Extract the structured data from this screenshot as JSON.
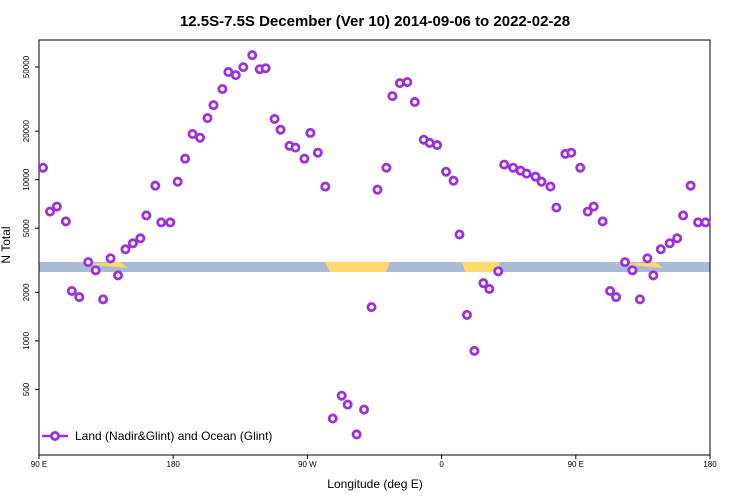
{
  "chart_data": {
    "type": "scatter",
    "title": "12.5S-7.5S December (Ver 10)   2014-09-06 to 2022-02-28",
    "x_label": "Longitude (deg E)",
    "y_label": "N Total",
    "y_scale": "log",
    "legend_position": "lower left",
    "xlim": [
      90,
      540
    ],
    "ylim": [
      196,
      73500
    ],
    "xticks": [
      {
        "value": 90,
        "label": "90 E"
      },
      {
        "value": 180,
        "label": "180"
      },
      {
        "value": 270,
        "label": "90 W"
      },
      {
        "value": 360,
        "label": "0"
      },
      {
        "value": 450,
        "label": "90 E"
      },
      {
        "value": 540,
        "label": "180"
      }
    ],
    "yticks": [
      500,
      1000,
      2000,
      5000,
      10000,
      20000,
      50000
    ],
    "series": [
      {
        "name": "Land (Nadir&Glint) and Ocean (Glint)",
        "color": "#9b30e0",
        "x": [
          92.7,
          97.4,
          102,
          108,
          112,
          117,
          123,
          128,
          133,
          138,
          143,
          148,
          153,
          158,
          162,
          168,
          172,
          178,
          183,
          188,
          193,
          198,
          203,
          207,
          213,
          217,
          222,
          227,
          233,
          238,
          242,
          248,
          252,
          258,
          262,
          268,
          272,
          277,
          282,
          287,
          293,
          297,
          303,
          308,
          313,
          317,
          323,
          327,
          332,
          337,
          342,
          348,
          352,
          357,
          363,
          368,
          372,
          377,
          382,
          388,
          392,
          398,
          402,
          408,
          413,
          417,
          423,
          427,
          433,
          437,
          443,
          447,
          453,
          458,
          462,
          468,
          473,
          477,
          483,
          488,
          493,
          498,
          502,
          507,
          513,
          518,
          522,
          527,
          532,
          537
        ],
        "values": [
          11860,
          6340,
          6810,
          5510,
          2040,
          1870,
          3080,
          2740,
          1810,
          3250,
          2550,
          3700,
          4030,
          4330,
          6000,
          9180,
          5430,
          5430,
          9720,
          13500,
          19200,
          18200,
          24100,
          29000,
          36500,
          46500,
          44500,
          49900,
          59200,
          48400,
          49100,
          23800,
          20400,
          16200,
          15800,
          13500,
          19500,
          14700,
          9060,
          330,
          457,
          403,
          263,
          375,
          1620,
          8670,
          11860,
          33000,
          39700,
          40300,
          30300,
          17700,
          16900,
          16400,
          11200,
          9860,
          4570,
          1450,
          867,
          2280,
          2100,
          2700,
          12400,
          11860,
          11370,
          10900,
          10440,
          9720,
          9060,
          6710,
          14450,
          14700,
          11860,
          6340,
          6810,
          5510,
          2040,
          1870,
          3080,
          2740,
          1810,
          3250,
          2550,
          3700,
          4030,
          4330,
          6000,
          9180,
          5430,
          5430
        ]
      }
    ]
  }
}
